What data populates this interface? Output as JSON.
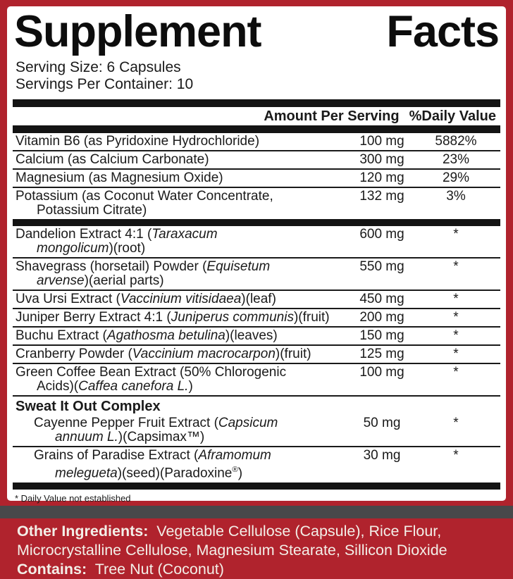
{
  "colors": {
    "border_red": "#B0232D",
    "divider_gray": "#48484A",
    "bar_black": "#141414",
    "text_on_red": "#F3EFE8"
  },
  "header": {
    "title": "Supplement Facts",
    "serving_size": "Serving Size: 6 Capsules",
    "servings_per_container": "Servings Per Container: 10",
    "col_amount": "Amount Per Serving",
    "col_dv": "%Daily Value"
  },
  "sections": [
    {
      "divider_before": null,
      "rows": [
        {
          "lines": [
            [
              {
                "t": "Vitamin B6 (as Pyridoxine Hydrochloride)"
              }
            ]
          ],
          "amount": "100 mg",
          "dv": "5882%"
        },
        {
          "lines": [
            [
              {
                "t": "Calcium (as Calcium Carbonate)"
              }
            ]
          ],
          "amount": "300 mg",
          "dv": "23%"
        },
        {
          "lines": [
            [
              {
                "t": "Magnesium (as Magnesium Oxide)"
              }
            ]
          ],
          "amount": "120 mg",
          "dv": "29%"
        },
        {
          "lines": [
            [
              {
                "t": "Potassium (as Coconut Water Concentrate,"
              }
            ],
            [
              {
                "t": "Potassium Citrate)"
              }
            ]
          ],
          "amount": "132 mg",
          "dv": "3%"
        }
      ]
    },
    {
      "divider_before": "thick",
      "rows": [
        {
          "lines": [
            [
              {
                "t": "Dandelion Extract 4:1 ("
              },
              {
                "t": "Taraxacum",
                "i": true
              }
            ],
            [
              {
                "t": "mongolicum",
                "i": true
              },
              {
                "t": ")(root)"
              }
            ]
          ],
          "amount": "600 mg",
          "dv": "*"
        },
        {
          "lines": [
            [
              {
                "t": "Shavegrass (horsetail) Powder ("
              },
              {
                "t": "Equisetum",
                "i": true
              }
            ],
            [
              {
                "t": "arvense",
                "i": true
              },
              {
                "t": ")(aerial parts)"
              }
            ]
          ],
          "amount": "550 mg",
          "dv": "*"
        },
        {
          "lines": [
            [
              {
                "t": "Uva Ursi Extract ("
              },
              {
                "t": "Vaccinium vitisidaea",
                "i": true
              },
              {
                "t": ")(leaf)"
              }
            ]
          ],
          "amount": "450 mg",
          "dv": "*"
        },
        {
          "lines": [
            [
              {
                "t": "Juniper Berry Extract 4:1 ("
              },
              {
                "t": "Juniperus communis",
                "i": true
              },
              {
                "t": ")(fruit)"
              }
            ]
          ],
          "amount": "200 mg",
          "dv": "*"
        },
        {
          "lines": [
            [
              {
                "t": "Buchu Extract ("
              },
              {
                "t": "Agathosma betulina",
                "i": true
              },
              {
                "t": ")(leaves)"
              }
            ]
          ],
          "amount": "150 mg",
          "dv": "*"
        },
        {
          "lines": [
            [
              {
                "t": "Cranberry Powder ("
              },
              {
                "t": "Vaccinium macrocarpon",
                "i": true
              },
              {
                "t": ")(fruit)"
              }
            ]
          ],
          "amount": "125 mg",
          "dv": "*"
        },
        {
          "lines": [
            [
              {
                "t": "Green Coffee Bean Extract (50% Chlorogenic"
              }
            ],
            [
              {
                "t": "Acids)("
              },
              {
                "t": "Caffea canefora L.",
                "i": true
              },
              {
                "t": ")"
              }
            ]
          ],
          "amount": "100 mg",
          "dv": "*"
        }
      ]
    },
    {
      "divider_before": "thin",
      "heading": "Sweat It Out Complex",
      "rows": [
        {
          "ind": 1,
          "lines": [
            [
              {
                "t": "Cayenne Pepper Fruit Extract ("
              },
              {
                "t": "Capsicum",
                "i": true
              }
            ],
            [
              {
                "t": "annuum L.",
                "i": true
              },
              {
                "t": ")(Capsimax™)"
              }
            ]
          ],
          "amount": "50 mg",
          "dv": "*"
        },
        {
          "ind": 1,
          "lines": [
            [
              {
                "t": "Grains of Paradise Extract ("
              },
              {
                "t": "Aframomum",
                "i": true
              }
            ],
            [
              {
                "t": "melegueta",
                "i": true
              },
              {
                "t": ")(seed)(Paradoxine"
              },
              {
                "t": "®",
                "sup": true
              },
              {
                "t": ")"
              }
            ]
          ],
          "amount": "30 mg",
          "dv": "*"
        }
      ]
    }
  ],
  "footnote": "* Daily Value not established",
  "bottom": {
    "lines": [
      [
        {
          "t": "Other Ingredients:",
          "b": true
        },
        {
          "t": "  Vegetable Cellulose (Capsule), Rice Flour,"
        }
      ],
      [
        {
          "t": "Microcrystalline Cellulose, Magnesium Stearate, Sillicon Dioxide"
        }
      ],
      [
        {
          "t": "Contains:",
          "b": true
        },
        {
          "t": "  Tree Nut (Coconut)"
        }
      ]
    ]
  }
}
